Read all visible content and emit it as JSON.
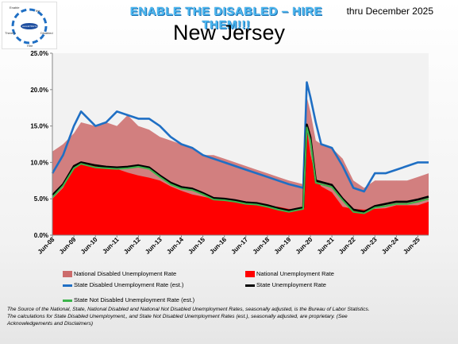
{
  "header": {
    "banner": "ENABLE THE DISABLED – HIRE THEM!!!",
    "thru": "thru December 2025",
    "logo_words": [
      "Enable",
      "the",
      "Disabled",
      "Hire",
      "Them!!!"
    ],
    "logo_center": "www.ETDHT.com"
  },
  "colors": {
    "national_disabled": "#cc6b6b",
    "national": "#ff0000",
    "state_disabled": "#1f6fc4",
    "state": "#000000",
    "state_not_disabled": "#3cb44b",
    "plot_bg": "#f2f2f2"
  },
  "legend": {
    "national_disabled": "National Disabled Unemployment Rate",
    "national": "National Unemployment Rate",
    "state_disabled": "State Disabled Unemployment Rate (est.)",
    "state": "State Unemployment Rate",
    "state_not_disabled": "State Not Disabled Unemployment Rate (est.)"
  },
  "footnote": {
    "line1": "The Source of the National, State, National Disabled and National Not Disabled Unemployment Rates, seasonally adjusted, is the Bureau of Labor Statistics.",
    "line2": "The calculations for State Disabled Unemployment,, and State Not Disabled Unemployment Rates (est.), seasonally adjusted, are proprietary. (See",
    "line3": "Acknowledgements and Disclaimers)"
  },
  "chart_data": {
    "type": "area",
    "title": "New Jersey",
    "xlabel": "",
    "ylabel": "",
    "ylim": [
      0,
      25
    ],
    "y_ticks": [
      "0.0%",
      "5.0%",
      "10.0%",
      "15.0%",
      "20.0%",
      "25.0%"
    ],
    "x_ticks": [
      "Jun-08",
      "Jun-09",
      "Jun-10",
      "Jun-11",
      "Jun-12",
      "Jun-13",
      "Jun-14",
      "Jun-15",
      "Jun-16",
      "Jun-17",
      "Jun-18",
      "Jun-19",
      "Jun-20",
      "Jun-21",
      "Jun-22",
      "Jun-23",
      "Jun-24",
      "Jun-25"
    ],
    "grid": false,
    "legend_position": "bottom",
    "x": [
      "Jun-08",
      "Dec-08",
      "Jun-09",
      "Oct-09",
      "Jun-10",
      "Dec-10",
      "Jun-11",
      "Dec-11",
      "Jun-12",
      "Dec-12",
      "Jun-13",
      "Dec-13",
      "Jun-14",
      "Dec-14",
      "Jun-15",
      "Dec-15",
      "Jun-16",
      "Dec-16",
      "Jun-17",
      "Dec-17",
      "Jun-18",
      "Dec-18",
      "Jun-19",
      "Feb-20",
      "Apr-20",
      "Jun-20",
      "Sep-20",
      "Dec-20",
      "Jun-21",
      "Dec-21",
      "Jun-22",
      "Dec-22",
      "Jun-23",
      "Dec-23",
      "Jun-24",
      "Dec-24",
      "Jun-25",
      "Dec-25"
    ],
    "series": [
      {
        "name": "National Disabled Unemployment Rate",
        "type": "area",
        "values": [
          11.5,
          12.5,
          14.0,
          15.5,
          15.0,
          15.5,
          15.0,
          16.5,
          15.0,
          14.5,
          13.5,
          13.0,
          12.5,
          12.0,
          11.0,
          11.0,
          10.5,
          10.0,
          9.5,
          9.0,
          8.5,
          8.0,
          7.5,
          7.0,
          19.0,
          17.0,
          13.0,
          12.5,
          12.0,
          10.5,
          7.5,
          6.5,
          7.5,
          7.5,
          7.5,
          7.5,
          8.0,
          8.5
        ]
      },
      {
        "name": "National Unemployment Rate",
        "type": "area",
        "values": [
          5.0,
          6.5,
          9.3,
          9.9,
          9.5,
          9.3,
          9.1,
          8.6,
          8.2,
          7.9,
          7.5,
          6.7,
          6.1,
          5.6,
          5.3,
          5.0,
          4.9,
          4.7,
          4.3,
          4.1,
          4.0,
          3.9,
          3.6,
          3.5,
          14.8,
          11.1,
          7.9,
          6.7,
          5.9,
          3.9,
          3.6,
          3.5,
          3.6,
          3.7,
          4.1,
          4.1,
          4.1,
          4.6
        ]
      },
      {
        "name": "State Disabled Unemployment Rate (est.)",
        "type": "line",
        "values": [
          8.5,
          11.0,
          15.0,
          17.0,
          15.0,
          15.5,
          17.0,
          16.5,
          16.0,
          16.0,
          15.0,
          13.5,
          12.5,
          12.0,
          11.0,
          10.5,
          10.0,
          9.5,
          9.0,
          8.5,
          8.0,
          7.5,
          7.0,
          6.5,
          21.0,
          19.0,
          15.5,
          12.5,
          12.0,
          9.5,
          6.5,
          6.0,
          8.5,
          8.5,
          9.0,
          9.5,
          10.0,
          10.0
        ]
      },
      {
        "name": "State Unemployment Rate",
        "type": "line",
        "values": [
          5.5,
          7.0,
          9.5,
          10.0,
          9.6,
          9.4,
          9.3,
          9.4,
          9.6,
          9.3,
          8.2,
          7.2,
          6.6,
          6.4,
          5.8,
          5.1,
          5.0,
          4.8,
          4.5,
          4.4,
          4.1,
          3.7,
          3.4,
          3.8,
          15.2,
          13.5,
          7.5,
          7.3,
          6.9,
          5.0,
          3.5,
          3.2,
          4.0,
          4.3,
          4.6,
          4.6,
          4.9,
          5.3
        ]
      },
      {
        "name": "State Not Disabled Unemployment Rate (est.)",
        "type": "line",
        "values": [
          5.2,
          6.8,
          9.2,
          9.8,
          9.3,
          9.2,
          9.1,
          9.2,
          9.4,
          9.1,
          8.0,
          7.0,
          6.4,
          6.2,
          5.6,
          4.9,
          4.8,
          4.6,
          4.3,
          4.2,
          3.9,
          3.5,
          3.2,
          3.6,
          14.8,
          13.0,
          7.2,
          7.0,
          6.6,
          4.8,
          3.2,
          3.0,
          3.8,
          4.0,
          4.3,
          4.3,
          4.6,
          5.0
        ]
      }
    ]
  }
}
